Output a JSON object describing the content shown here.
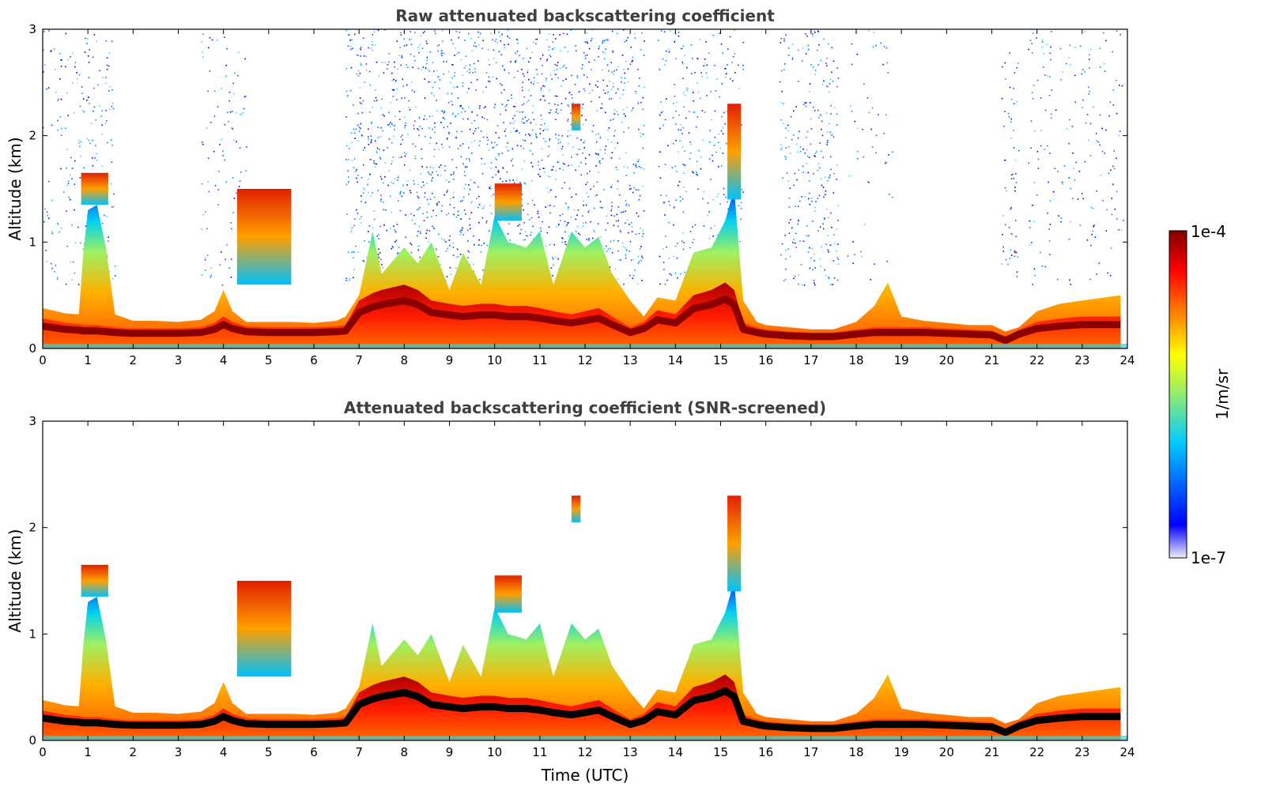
{
  "chart_data": [
    {
      "type": "heatmap",
      "title": "Raw attenuated backscattering coefficient",
      "xlabel": "",
      "ylabel": "Altitude (km)",
      "xlim": [
        0,
        24
      ],
      "ylim": [
        0,
        3
      ],
      "x_ticks": [
        "0",
        "1",
        "2",
        "3",
        "4",
        "5",
        "6",
        "7",
        "8",
        "9",
        "10",
        "11",
        "12",
        "13",
        "14",
        "15",
        "16",
        "17",
        "18",
        "19",
        "20",
        "21",
        "22",
        "23",
        "24"
      ],
      "y_ticks": [
        "0",
        "1",
        "2",
        "3"
      ],
      "colorscale": "jet",
      "noise_above_layer": true,
      "layers": {
        "x": [
          0,
          0.5,
          0.8,
          0.9,
          1.0,
          1.2,
          1.4,
          1.6,
          2,
          2.5,
          3,
          3.5,
          3.8,
          4.0,
          4.2,
          4.5,
          5,
          5.5,
          6,
          6.5,
          6.7,
          7,
          7.3,
          7.5,
          8,
          8.3,
          8.6,
          9,
          9.3,
          9.7,
          10,
          10.3,
          10.7,
          11,
          11.3,
          11.7,
          12,
          12.3,
          12.6,
          13,
          13.3,
          13.6,
          14,
          14.4,
          14.8,
          15.1,
          15.3,
          15.5,
          15.8,
          16,
          16.5,
          17,
          17.5,
          18,
          18.4,
          18.7,
          19,
          19.5,
          20,
          20.5,
          21,
          21.3,
          21.6,
          22,
          22.5,
          23,
          23.5,
          23.85
        ],
        "mixed_layer_top_km": [
          0.38,
          0.33,
          0.32,
          0.9,
          1.3,
          1.35,
          0.95,
          0.32,
          0.26,
          0.26,
          0.25,
          0.27,
          0.35,
          0.55,
          0.35,
          0.25,
          0.25,
          0.25,
          0.24,
          0.26,
          0.3,
          0.5,
          1.1,
          0.7,
          0.95,
          0.8,
          1.0,
          0.55,
          0.9,
          0.6,
          1.25,
          1.0,
          0.95,
          1.1,
          0.6,
          1.1,
          0.95,
          1.05,
          0.7,
          0.45,
          0.3,
          0.48,
          0.45,
          0.9,
          0.95,
          1.2,
          1.5,
          0.45,
          0.25,
          0.22,
          0.2,
          0.18,
          0.18,
          0.25,
          0.4,
          0.62,
          0.3,
          0.26,
          0.24,
          0.22,
          0.22,
          0.16,
          0.2,
          0.35,
          0.42,
          0.45,
          0.48,
          0.5
        ],
        "aerosol_layer_top_km": [
          0.28,
          0.24,
          0.23,
          0.22,
          0.22,
          0.22,
          0.21,
          0.2,
          0.19,
          0.19,
          0.19,
          0.2,
          0.24,
          0.3,
          0.25,
          0.21,
          0.2,
          0.2,
          0.2,
          0.21,
          0.22,
          0.45,
          0.52,
          0.55,
          0.6,
          0.55,
          0.45,
          0.42,
          0.4,
          0.42,
          0.42,
          0.4,
          0.4,
          0.38,
          0.35,
          0.32,
          0.35,
          0.38,
          0.3,
          0.2,
          0.25,
          0.36,
          0.32,
          0.5,
          0.55,
          0.62,
          0.55,
          0.24,
          0.2,
          0.18,
          0.16,
          0.15,
          0.15,
          0.18,
          0.2,
          0.2,
          0.2,
          0.2,
          0.19,
          0.18,
          0.17,
          0.1,
          0.18,
          0.25,
          0.28,
          0.3,
          0.3,
          0.3
        ]
      },
      "elevated_layers": [
        {
          "x_start": 0.85,
          "x_end": 1.45,
          "base_km": 1.35,
          "top_km": 1.65
        },
        {
          "x_start": 4.3,
          "x_end": 5.5,
          "base_km": 0.6,
          "top_km": 1.5
        },
        {
          "x_start": 10.0,
          "x_end": 10.6,
          "base_km": 1.2,
          "top_km": 1.55
        },
        {
          "x_start": 11.7,
          "x_end": 11.9,
          "base_km": 2.05,
          "top_km": 2.3
        },
        {
          "x_start": 15.15,
          "x_end": 15.45,
          "base_km": 1.4,
          "top_km": 2.3
        }
      ]
    },
    {
      "type": "heatmap",
      "title": "Attenuated backscattering coefficient (SNR-screened)",
      "xlabel": "Time (UTC)",
      "ylabel": "Altitude (km)",
      "xlim": [
        0,
        24
      ],
      "ylim": [
        0,
        3
      ],
      "x_ticks": [
        "0",
        "1",
        "2",
        "3",
        "4",
        "5",
        "6",
        "7",
        "8",
        "9",
        "10",
        "11",
        "12",
        "13",
        "14",
        "15",
        "16",
        "17",
        "18",
        "19",
        "20",
        "21",
        "22",
        "23",
        "24"
      ],
      "y_ticks": [
        "0",
        "1",
        "2",
        "3"
      ],
      "colorscale": "jet",
      "noise_above_layer": false,
      "black_saturation_layer": true
    }
  ],
  "colorbar": {
    "label": "1/m/sr",
    "max_label": "1e-4",
    "min_label": "1e-7",
    "stops": [
      "#eeeefa",
      "#0000ff",
      "#00c8ff",
      "#90ee70",
      "#ffff00",
      "#ff7f00",
      "#ff0000",
      "#800000"
    ]
  }
}
